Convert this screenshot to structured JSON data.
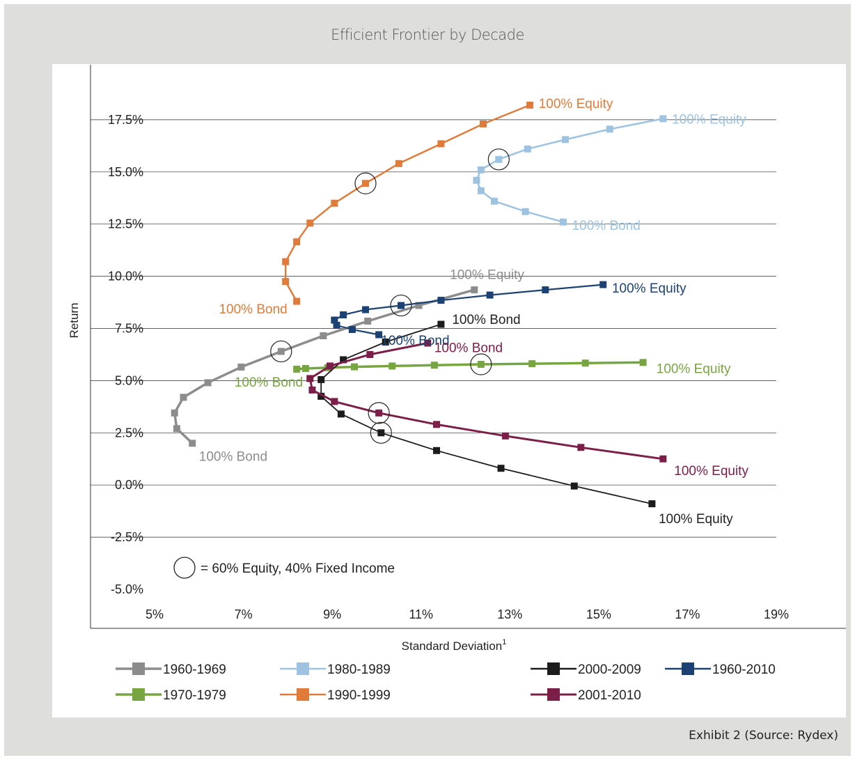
{
  "title": "Efficient Frontier by Decade",
  "footer": "Exhibit 2 (Source: Rydex)",
  "chart_data": {
    "type": "line",
    "title": "Efficient Frontier by Decade",
    "xlabel": "Standard Deviation",
    "xlabel_superscript": "1",
    "ylabel": "Return",
    "xlim": [
      5,
      19
    ],
    "ylim": [
      -5,
      20
    ],
    "x_ticks": [
      "5%",
      "7%",
      "9%",
      "11%",
      "13%",
      "15%",
      "17%",
      "19%"
    ],
    "y_ticks": [
      "-5.0%",
      "-2.5%",
      "0.0%",
      "2.5%",
      "5.0%",
      "7.5%",
      "10.0%",
      "12.5%",
      "15.0%",
      "17.5%"
    ],
    "grid": "horizontal",
    "circle_note": "= 60% Equity, 40% Fixed Income",
    "series": [
      {
        "name": "1960-1969",
        "color": "#8c8c8c",
        "width": 3.5,
        "points": [
          [
            5.85,
            2.0
          ],
          [
            5.5,
            2.7
          ],
          [
            5.45,
            3.45
          ],
          [
            5.65,
            4.2
          ],
          [
            6.2,
            4.9
          ],
          [
            6.95,
            5.65
          ],
          [
            7.85,
            6.4
          ],
          [
            8.8,
            7.15
          ],
          [
            9.8,
            7.85
          ],
          [
            10.95,
            8.6
          ],
          [
            12.2,
            9.35
          ]
        ],
        "circled_index": 6
      },
      {
        "name": "1970-1979",
        "color": "#77a542",
        "width": 3.5,
        "points": [
          [
            8.2,
            5.55
          ],
          [
            8.4,
            5.58
          ],
          [
            8.9,
            5.62
          ],
          [
            9.5,
            5.66
          ],
          [
            10.35,
            5.7
          ],
          [
            11.3,
            5.74
          ],
          [
            12.35,
            5.78
          ],
          [
            13.5,
            5.81
          ],
          [
            14.7,
            5.84
          ],
          [
            16.0,
            5.87
          ]
        ],
        "circled_index": 6
      },
      {
        "name": "1980-1989",
        "color": "#9dc3e1",
        "width": 2.5,
        "points": [
          [
            14.2,
            12.6
          ],
          [
            13.35,
            13.1
          ],
          [
            12.65,
            13.6
          ],
          [
            12.35,
            14.1
          ],
          [
            12.25,
            14.6
          ],
          [
            12.35,
            15.1
          ],
          [
            12.75,
            15.6
          ],
          [
            13.4,
            16.1
          ],
          [
            14.25,
            16.55
          ],
          [
            15.25,
            17.05
          ],
          [
            16.45,
            17.55
          ]
        ],
        "circled_index": 6
      },
      {
        "name": "1990-1999",
        "color": "#e07b3a",
        "width": 2.5,
        "points": [
          [
            8.2,
            8.8
          ],
          [
            7.95,
            9.75
          ],
          [
            7.95,
            10.7
          ],
          [
            8.2,
            11.65
          ],
          [
            8.5,
            12.55
          ],
          [
            9.05,
            13.5
          ],
          [
            9.75,
            14.45
          ],
          [
            10.5,
            15.4
          ],
          [
            11.45,
            16.35
          ],
          [
            12.4,
            17.3
          ],
          [
            13.45,
            18.2
          ]
        ],
        "circled_index": 6
      },
      {
        "name": "2000-2009",
        "color": "#1c1c1c",
        "width": 1.8,
        "points": [
          [
            11.45,
            7.7
          ],
          [
            10.2,
            6.85
          ],
          [
            9.25,
            6.0
          ],
          [
            8.75,
            5.05
          ],
          [
            8.75,
            4.25
          ],
          [
            9.2,
            3.4
          ],
          [
            10.1,
            2.5
          ],
          [
            11.35,
            1.65
          ],
          [
            12.8,
            0.8
          ],
          [
            14.45,
            -0.05
          ],
          [
            16.2,
            -0.9
          ]
        ],
        "circled_index": 6
      },
      {
        "name": "1960-2010",
        "color": "#1b4272",
        "width": 2.2,
        "points": [
          [
            10.05,
            7.2
          ],
          [
            9.45,
            7.45
          ],
          [
            9.1,
            7.65
          ],
          [
            9.05,
            7.9
          ],
          [
            9.25,
            8.15
          ],
          [
            9.75,
            8.4
          ],
          [
            10.55,
            8.6
          ],
          [
            11.45,
            8.85
          ],
          [
            12.55,
            9.1
          ],
          [
            13.8,
            9.35
          ],
          [
            15.1,
            9.6
          ]
        ],
        "circled_index": 6
      },
      {
        "name": "2001-2010",
        "color": "#7b1e48",
        "width": 3.0,
        "points": [
          [
            11.15,
            6.8
          ],
          [
            9.85,
            6.25
          ],
          [
            8.95,
            5.7
          ],
          [
            8.5,
            5.1
          ],
          [
            8.55,
            4.55
          ],
          [
            9.05,
            4.0
          ],
          [
            10.05,
            3.45
          ],
          [
            11.35,
            2.9
          ],
          [
            12.9,
            2.35
          ],
          [
            14.6,
            1.8
          ],
          [
            16.45,
            1.25
          ]
        ],
        "circled_index": 6
      }
    ],
    "annotations": [
      {
        "text": "100% Equity",
        "series": "1990-1999",
        "x": 13.65,
        "y": 18.3
      },
      {
        "text": "100% Equity",
        "series": "1980-1989",
        "x": 16.65,
        "y": 17.55
      },
      {
        "text": "100% Bond",
        "series": "1980-1989",
        "x": 14.4,
        "y": 12.45
      },
      {
        "text": "100% Bond",
        "series": "1990-1999",
        "x": 6.45,
        "y": 8.45
      },
      {
        "text": "100% Equity",
        "series": "1960-1969",
        "x": 11.65,
        "y": 10.1
      },
      {
        "text": "100% Equity",
        "series": "1960-2010",
        "x": 15.3,
        "y": 9.45
      },
      {
        "text": "100% Bond",
        "series": "2000-2009",
        "x": 11.7,
        "y": 7.95
      },
      {
        "text": "100% Bond",
        "series": "1960-2010",
        "x": 10.1,
        "y": 6.95
      },
      {
        "text": "100% Bond",
        "series": "2001-2010",
        "x": 11.3,
        "y": 6.6
      },
      {
        "text": "100% Equity",
        "series": "1970-1979",
        "x": 16.3,
        "y": 5.6
      },
      {
        "text": "100% Bond",
        "series": "1970-1979",
        "x": 6.8,
        "y": 4.95
      },
      {
        "text": "100% Bond",
        "series": "1960-1969",
        "x": 6.0,
        "y": 1.4
      },
      {
        "text": "100% Equity",
        "series": "2001-2010",
        "x": 16.7,
        "y": 0.7
      },
      {
        "text": "100% Equity",
        "series": "2000-2009",
        "x": 16.35,
        "y": -1.6
      }
    ],
    "legend": [
      {
        "series": "1960-1969",
        "col": 0,
        "row": 0
      },
      {
        "series": "1970-1979",
        "col": 0,
        "row": 1
      },
      {
        "series": "1980-1989",
        "col": 1,
        "row": 0
      },
      {
        "series": "1990-1999",
        "col": 1,
        "row": 1
      },
      {
        "series": "2000-2009",
        "col": 2,
        "row": 0
      },
      {
        "series": "2001-2010",
        "col": 2,
        "row": 1
      },
      {
        "series": "1960-2010",
        "col": 3,
        "row": 0
      }
    ]
  }
}
